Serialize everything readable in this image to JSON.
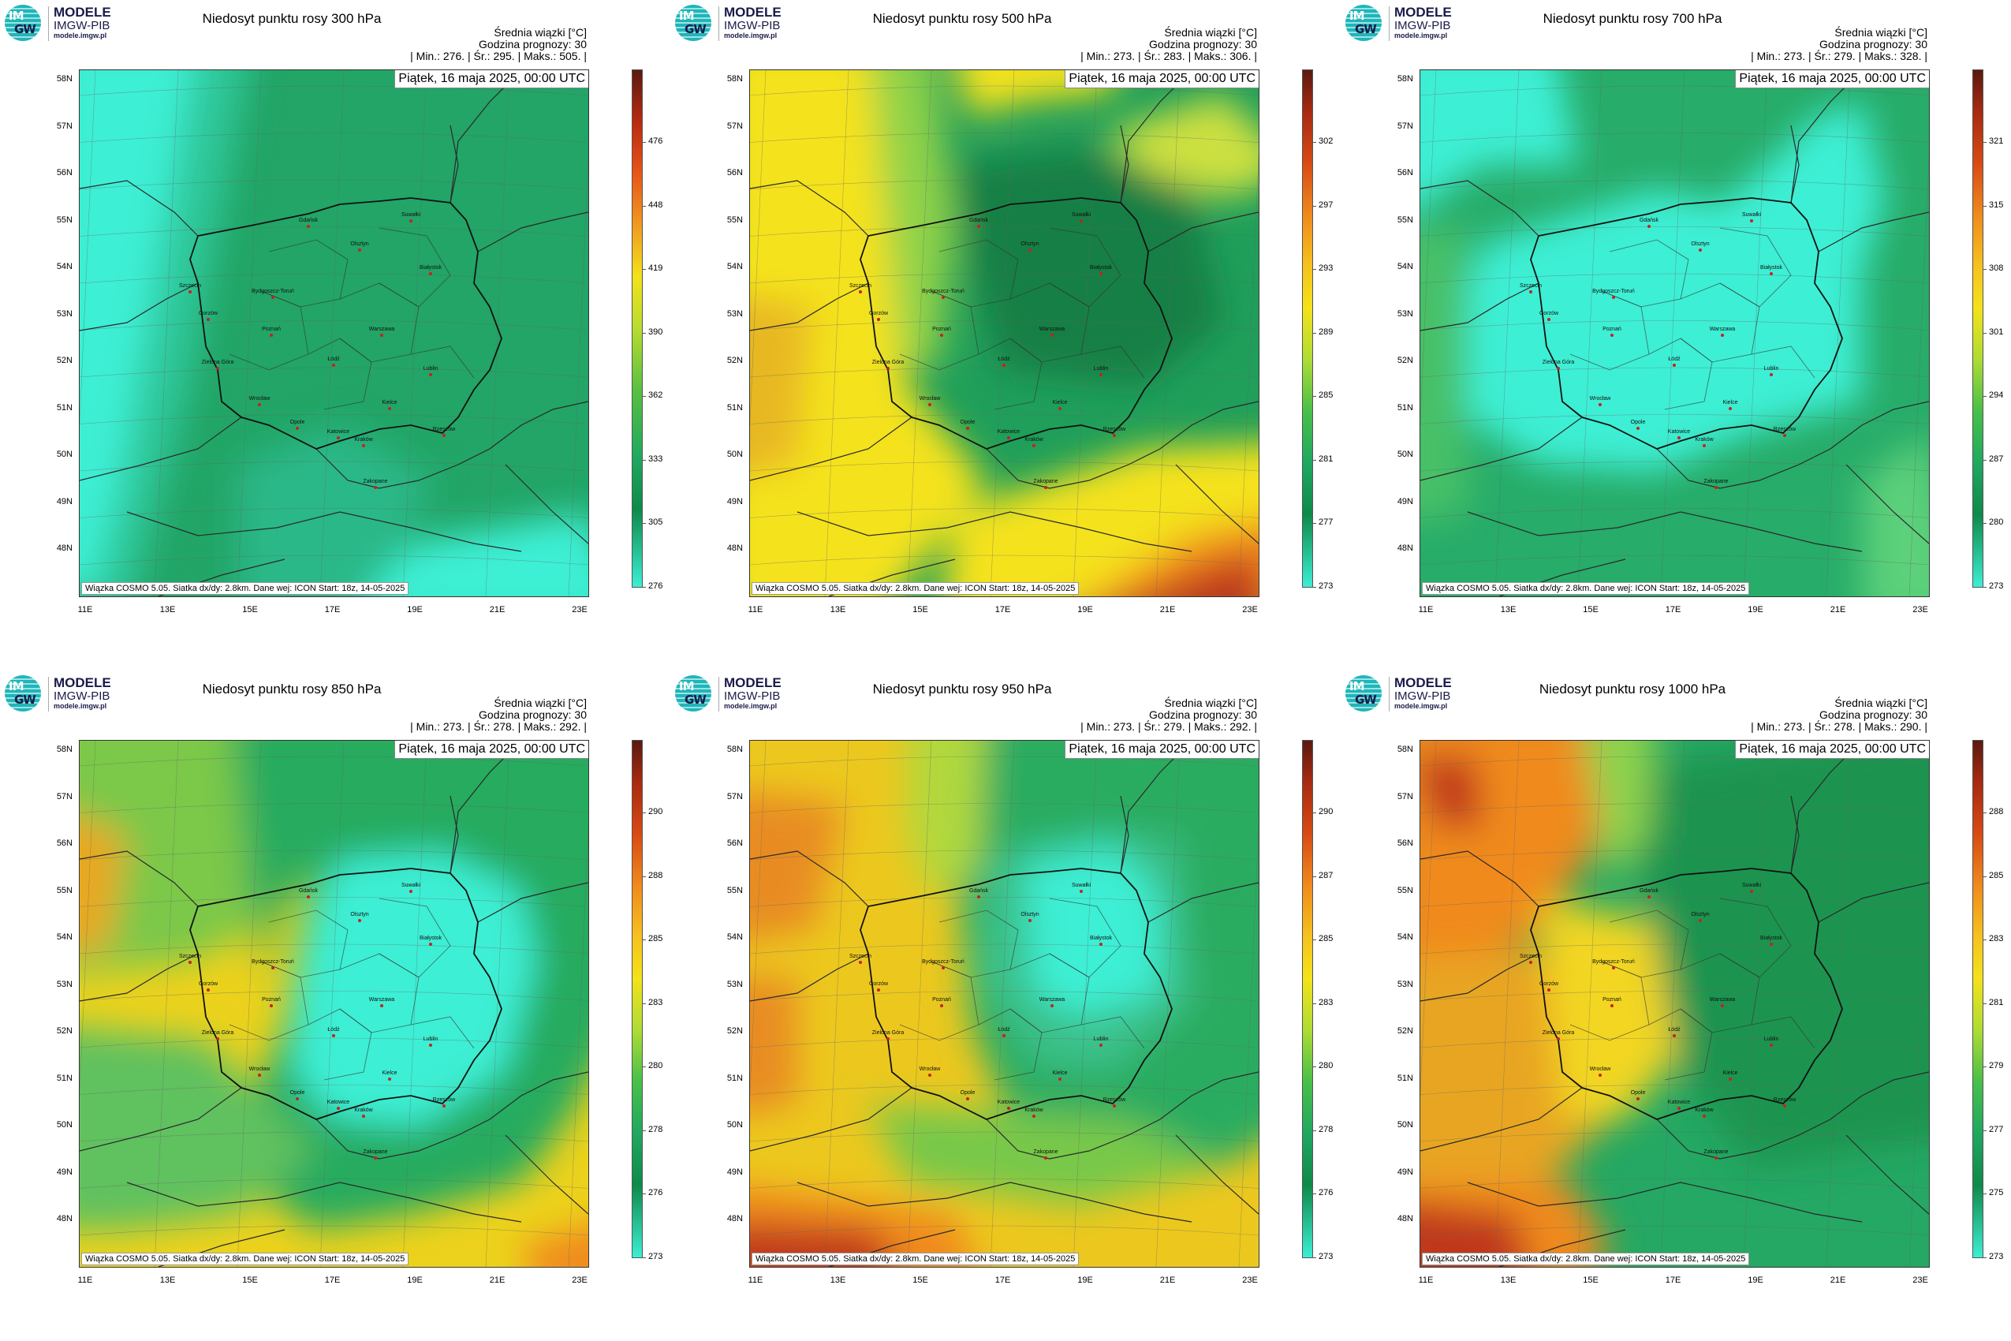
{
  "logo": {
    "line1": "MODELE",
    "line2": "IMGW-PIB",
    "line3": "modele.imgw.pl",
    "glyph_top": "IM",
    "glyph_bottom": "GW"
  },
  "common": {
    "legend_title": "Średnia wiązki [°C]",
    "forecast_hour": "Godzina prognozy: 30",
    "date": "Piątek, 16 maja 2025, 00:00 UTC",
    "footnote": "Wiązka COSMO 5.05. Siatka dx/dy: 2.8km. Dane wej: ICON Start: 18z, 14-05-2025",
    "lat_labels": [
      "58N",
      "57N",
      "56N",
      "55N",
      "54N",
      "53N",
      "52N",
      "51N",
      "50N",
      "49N",
      "48N"
    ],
    "lon_labels": [
      "11E",
      "13E",
      "15E",
      "17E",
      "19E",
      "21E",
      "23E"
    ],
    "cities": [
      "Gdańsk",
      "Olsztyn",
      "Suwałki",
      "Białystok",
      "Szczecin",
      "Gorzów",
      "Bydgoszcz-Toruń",
      "Poznań",
      "Warszawa",
      "Zielona Góra",
      "Łódź",
      "Lublin",
      "Wrocław",
      "Kielce",
      "Opole",
      "Katowice",
      "Kraków",
      "Rzeszów",
      "Zakopane"
    ],
    "colors": {
      "cyan": "#3cefd4",
      "green": "#1fa860",
      "dark_green": "#0e8a4a",
      "yellow": "#f4e21a",
      "orange": "#f08a1c",
      "red": "#c0391a",
      "dark_red": "#5a1a10"
    }
  },
  "panels": [
    {
      "title": "Niedosyt punktu rosy 300 hPa",
      "stats": "| Min.: 276. | Śr.: 295. | Maks.: 505. |",
      "ticks": [
        "476",
        "448",
        "419",
        "390",
        "362",
        "333",
        "305",
        "276"
      ],
      "style": "p300"
    },
    {
      "title": "Niedosyt punktu rosy 500 hPa",
      "stats": "| Min.: 273. | Śr.: 283. | Maks.: 306. |",
      "ticks": [
        "302",
        "297",
        "293",
        "289",
        "285",
        "281",
        "277",
        "273"
      ],
      "style": "p500"
    },
    {
      "title": "Niedosyt punktu rosy 700 hPa",
      "stats": "| Min.: 273. | Śr.: 279. | Maks.: 328. |",
      "ticks": [
        "321",
        "315",
        "308",
        "301",
        "294",
        "287",
        "280",
        "273"
      ],
      "style": "p700"
    },
    {
      "title": "Niedosyt punktu rosy 850 hPa",
      "stats": "| Min.: 273. | Śr.: 278. | Maks.: 292. |",
      "ticks": [
        "290",
        "288",
        "285",
        "283",
        "280",
        "278",
        "276",
        "273"
      ],
      "style": "p850"
    },
    {
      "title": "Niedosyt punktu rosy 950 hPa",
      "stats": "| Min.: 273. | Śr.: 279. | Maks.: 292. |",
      "ticks": [
        "290",
        "287",
        "285",
        "283",
        "280",
        "278",
        "276",
        "273"
      ],
      "style": "p950"
    },
    {
      "title": "Niedosyt punktu rosy 1000 hPa",
      "stats": "| Min.: 273. | Śr.: 278. | Maks.: 290. |",
      "ticks": [
        "288",
        "285",
        "283",
        "281",
        "279",
        "277",
        "275",
        "273"
      ],
      "style": "p1000"
    }
  ]
}
